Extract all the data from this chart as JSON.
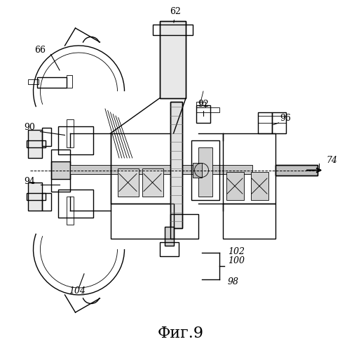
{
  "title": "Фиг.9",
  "background_color": "#ffffff",
  "line_color": "#000000",
  "figsize": [
    5.15,
    5.0
  ],
  "dpi": 100
}
